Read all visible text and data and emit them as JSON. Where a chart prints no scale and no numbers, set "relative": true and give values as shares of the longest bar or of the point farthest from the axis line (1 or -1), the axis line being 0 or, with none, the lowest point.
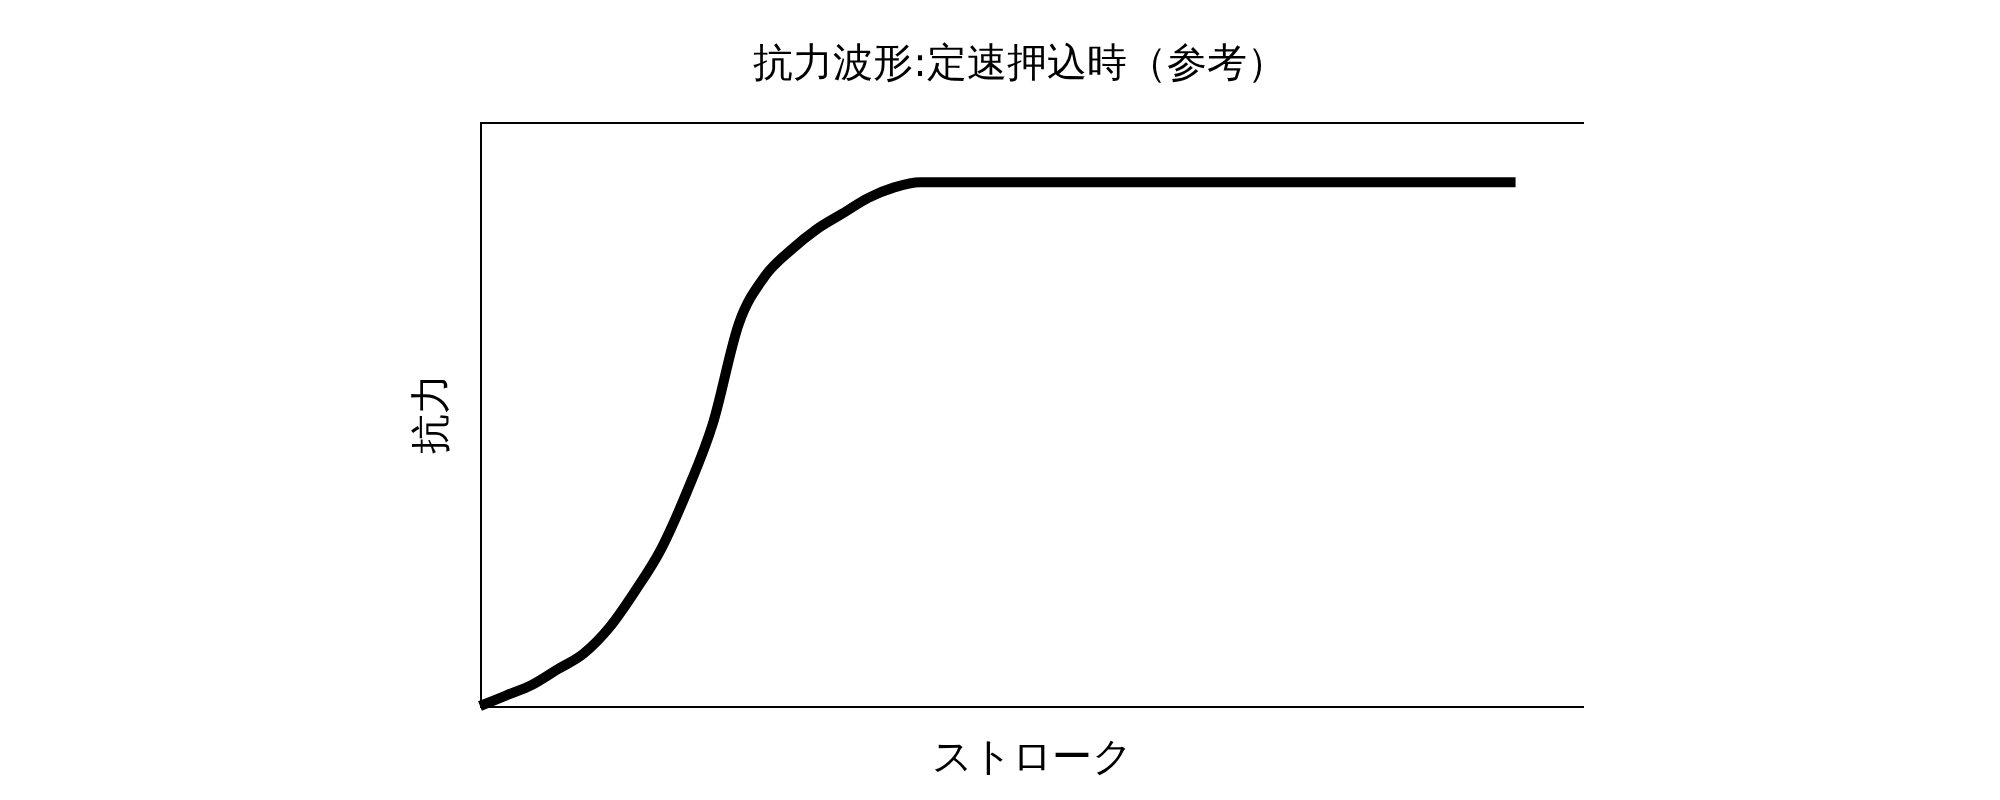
{
  "chart_data": {
    "type": "line",
    "title": "抗力波形:定速押込時（参考）",
    "xlabel": "ストローク",
    "ylabel": "抗力",
    "relative": true,
    "categories": [
      null,
      null,
      null,
      null,
      null,
      null,
      null,
      null,
      null,
      null,
      null,
      null,
      null,
      null,
      null,
      null,
      null,
      null,
      null,
      null,
      null,
      null,
      null,
      null,
      null,
      null,
      null,
      null,
      null,
      null,
      null,
      null,
      null,
      null,
      null,
      null,
      null,
      null,
      null,
      null,
      null
    ],
    "series": [
      {
        "color": "#000000",
        "values": [
          0,
          0.02,
          0.04,
          0.07,
          0.1,
          0.15,
          0.22,
          0.3,
          0.41,
          0.54,
          0.73,
          0.82,
          0.87,
          0.91,
          0.94,
          0.97,
          0.99,
          1,
          1,
          1,
          1,
          1,
          1,
          1,
          1,
          1,
          1,
          1,
          1,
          1,
          1,
          1,
          1,
          1,
          1,
          1,
          1,
          1,
          1,
          1,
          1
        ]
      }
    ]
  }
}
